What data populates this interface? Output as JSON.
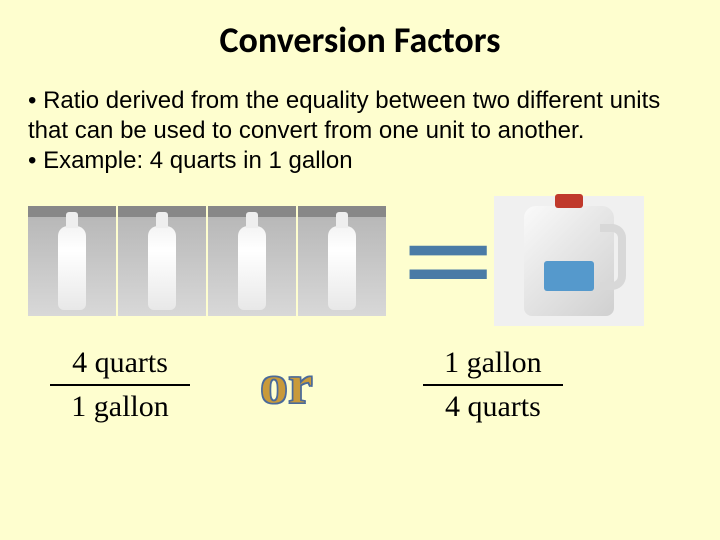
{
  "title": "Conversion Factors",
  "bullets": {
    "line1": "• Ratio derived from the equality between two different units that can be used to convert from one unit to another.",
    "line2": "• Example: 4 quarts in 1 gallon"
  },
  "visual": {
    "quart_count": 4,
    "equals_symbol": "=",
    "equals_color": "#4a7ba6",
    "quart_bg_gradient": [
      "#888888",
      "#b8b8b8",
      "#d8d8d8"
    ],
    "bottle_color": "#f4f4f4",
    "gallon_body": "#e8e8e8",
    "gallon_cap": "#c0392b",
    "gallon_label": "#5599cc"
  },
  "fractions": {
    "left": {
      "numerator": "4 quarts",
      "denominator": "1 gallon"
    },
    "or_text": "or",
    "or_fill": "#c99a3a",
    "or_stroke": "#4a6a9a",
    "right": {
      "numerator": "1 gallon",
      "denominator": "4 quarts"
    }
  },
  "background_color": "#fefecf",
  "title_fontsize": 36,
  "body_fontsize": 24,
  "fraction_fontsize": 30,
  "or_fontsize": 56
}
